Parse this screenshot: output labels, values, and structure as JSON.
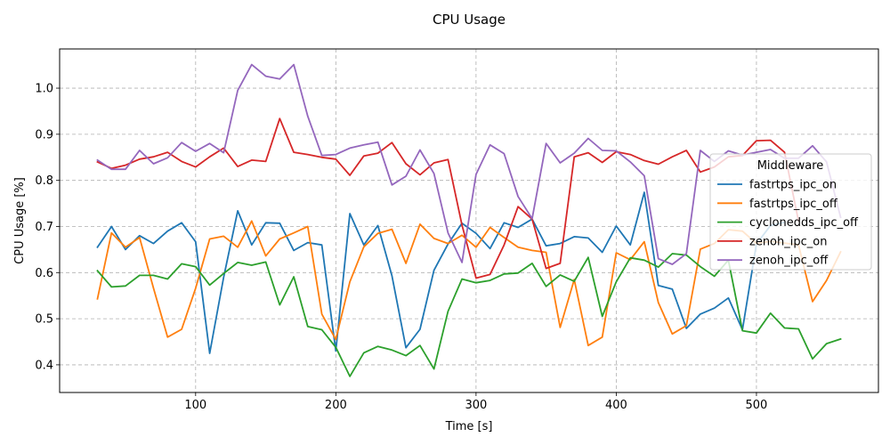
{
  "chart_data": {
    "type": "line",
    "title": "CPU Usage",
    "xlabel": "Time [s]",
    "ylabel": "CPU Usage [%]",
    "xlim": [
      3,
      587
    ],
    "ylim": [
      0.34,
      1.085
    ],
    "xticks": [
      100,
      200,
      300,
      400,
      500
    ],
    "yticks": [
      0.4,
      0.5,
      0.6,
      0.7,
      0.8,
      0.9,
      1.0
    ],
    "grid": true,
    "legend": {
      "title": "Middleware",
      "position": "right"
    },
    "x": [
      30,
      40,
      50,
      60,
      70,
      80,
      90,
      100,
      110,
      120,
      130,
      140,
      150,
      160,
      170,
      180,
      190,
      200,
      210,
      220,
      230,
      240,
      250,
      260,
      270,
      280,
      290,
      300,
      310,
      320,
      330,
      340,
      350,
      360,
      370,
      380,
      390,
      400,
      410,
      420,
      430,
      440,
      450,
      460,
      470,
      480,
      490,
      500,
      510,
      520,
      530,
      540,
      550,
      560
    ],
    "series": [
      {
        "name": "fastrtps_ipc_on",
        "color": "#1f77b4",
        "values": [
          0.655,
          0.7,
          0.65,
          0.68,
          0.663,
          0.69,
          0.708,
          0.667,
          0.425,
          0.59,
          0.734,
          0.66,
          0.708,
          0.707,
          0.648,
          0.665,
          0.66,
          0.43,
          0.728,
          0.66,
          0.702,
          0.593,
          0.437,
          0.477,
          0.605,
          0.662,
          0.707,
          0.685,
          0.652,
          0.708,
          0.698,
          0.716,
          0.658,
          0.663,
          0.678,
          0.675,
          0.644,
          0.701,
          0.66,
          0.774,
          0.572,
          0.564,
          0.479,
          0.51,
          0.523,
          0.545,
          0.476,
          0.662,
          0.702,
          0.709,
          null,
          null,
          null,
          null
        ]
      },
      {
        "name": "fastrtps_ipc_off",
        "color": "#ff7f0e",
        "values": [
          0.543,
          0.686,
          0.655,
          0.676,
          0.566,
          0.46,
          0.477,
          0.566,
          0.673,
          0.679,
          0.655,
          0.712,
          0.636,
          0.673,
          0.686,
          0.7,
          0.51,
          0.455,
          0.58,
          0.656,
          0.685,
          0.694,
          0.62,
          0.705,
          0.674,
          0.663,
          0.681,
          0.655,
          0.698,
          0.676,
          0.655,
          0.648,
          0.644,
          0.481,
          0.585,
          0.442,
          0.46,
          0.643,
          0.628,
          0.667,
          0.535,
          0.467,
          0.485,
          0.651,
          0.663,
          0.693,
          0.69,
          0.663,
          0.668,
          0.664,
          0.66,
          0.537,
          0.583,
          0.645
        ]
      },
      {
        "name": "cyclonedds_ipc_off",
        "color": "#2ca02c",
        "values": [
          0.604,
          0.569,
          0.571,
          0.594,
          0.594,
          0.586,
          0.619,
          0.613,
          0.573,
          0.598,
          0.622,
          0.616,
          0.623,
          0.53,
          0.591,
          0.483,
          0.476,
          0.438,
          0.375,
          0.426,
          0.44,
          0.432,
          0.42,
          0.442,
          0.391,
          0.516,
          0.586,
          0.578,
          0.583,
          0.597,
          0.599,
          0.62,
          0.57,
          0.595,
          0.581,
          0.633,
          0.505,
          0.58,
          0.632,
          0.627,
          0.612,
          0.641,
          0.638,
          0.613,
          0.592,
          0.627,
          0.474,
          0.469,
          0.512,
          0.48,
          0.478,
          0.413,
          0.446,
          0.456
        ]
      },
      {
        "name": "zenoh_ipc_on",
        "color": "#d62728",
        "values": [
          0.84,
          0.826,
          0.833,
          0.846,
          0.851,
          0.861,
          0.841,
          0.829,
          0.851,
          0.87,
          0.83,
          0.844,
          0.841,
          0.934,
          0.861,
          0.856,
          0.85,
          0.846,
          0.811,
          0.853,
          0.859,
          0.882,
          0.836,
          0.812,
          0.838,
          0.845,
          0.703,
          0.588,
          0.596,
          0.66,
          0.743,
          0.716,
          0.609,
          0.62,
          0.851,
          0.86,
          0.839,
          0.862,
          0.856,
          0.843,
          0.835,
          0.851,
          0.865,
          0.818,
          0.829,
          0.851,
          0.854,
          0.886,
          0.887,
          0.861,
          0.712,
          null,
          null,
          null
        ]
      },
      {
        "name": "zenoh_ipc_off",
        "color": "#9467bd",
        "values": [
          0.844,
          0.824,
          0.824,
          0.865,
          0.836,
          0.849,
          0.882,
          0.863,
          0.88,
          0.86,
          0.995,
          1.051,
          1.026,
          1.02,
          1.051,
          0.939,
          0.854,
          0.856,
          0.87,
          0.877,
          0.883,
          0.79,
          0.809,
          0.866,
          0.815,
          0.686,
          0.622,
          0.813,
          0.877,
          0.858,
          0.765,
          0.717,
          0.88,
          0.838,
          0.859,
          0.891,
          0.865,
          0.864,
          0.84,
          0.81,
          0.63,
          0.618,
          0.641,
          0.865,
          0.841,
          0.864,
          0.855,
          0.861,
          0.867,
          0.848,
          0.848,
          0.875,
          0.84,
          0.72
        ]
      }
    ]
  }
}
